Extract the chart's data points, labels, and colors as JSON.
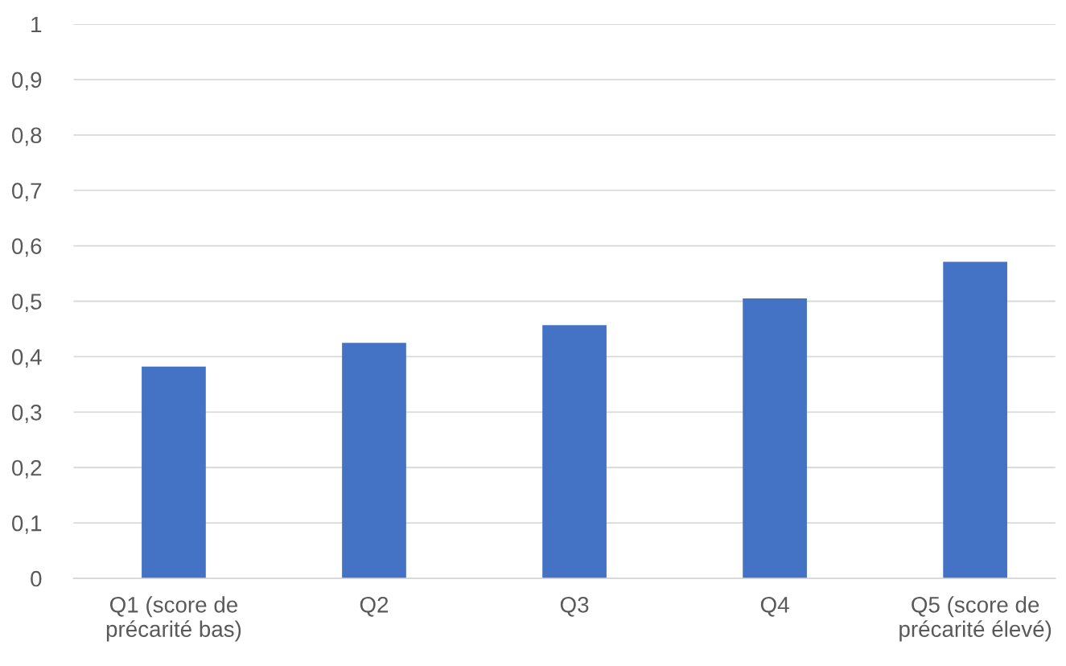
{
  "chart_data": {
    "type": "bar",
    "categories": [
      "Q1 (score de\nprécarité bas)",
      "Q2",
      "Q3",
      "Q4",
      "Q5 (score de\nprécarité élevé)"
    ],
    "values": [
      0.382,
      0.425,
      0.457,
      0.505,
      0.571
    ],
    "color": "#4472c4",
    "ylim": [
      0,
      1
    ],
    "yticks": [
      0,
      {
        "value": 0.1,
        "label": "0,1"
      },
      {
        "value": 0.2,
        "label": "0,2"
      },
      {
        "value": 0.3,
        "label": "0,3"
      },
      {
        "value": 0.4,
        "label": "0,4"
      },
      {
        "value": 0.5,
        "label": "0,5"
      },
      {
        "value": 0.6,
        "label": "0,6"
      },
      {
        "value": 0.7,
        "label": "0,7"
      },
      {
        "value": 0.8,
        "label": "0,8"
      },
      {
        "value": 0.9,
        "label": "0,9"
      },
      1
    ],
    "grid": "y"
  }
}
